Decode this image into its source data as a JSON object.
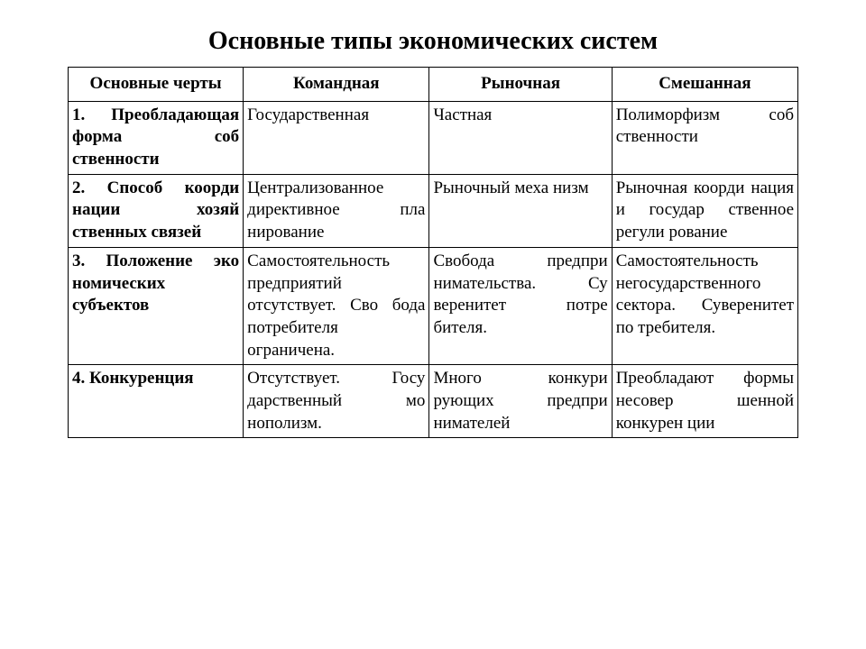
{
  "title": "Основные типы экономических систем",
  "table": {
    "type": "table",
    "background_color": "#ffffff",
    "border_color": "#000000",
    "text_color": "#000000",
    "font_family": "Times New Roman",
    "title_fontsize": 28,
    "header_fontsize": 19,
    "cell_fontsize": 19,
    "columns": [
      {
        "label": "Основные черты",
        "width_pct": 24,
        "align": "center"
      },
      {
        "label": "Командная",
        "width_pct": 25.5,
        "align": "center"
      },
      {
        "label": "Рыночная",
        "width_pct": 25,
        "align": "center"
      },
      {
        "label": "Смешанная",
        "width_pct": 25.5,
        "align": "center"
      }
    ],
    "rows": [
      {
        "feature": "1. Преобладающая форма соб ственности",
        "command": "Государственная",
        "market": "Частная",
        "mixed": "Полиморфизм соб ственности"
      },
      {
        "feature": "2. Способ коорди нации хозяй ственных связей",
        "command": "Централизованное директивное пла нирование",
        "market": "Рыночный меха низм",
        "mixed": "Рыночная коорди нация и государ ственное регули рование"
      },
      {
        "feature": "3. Положение эко номических субъектов",
        "command": "Самостоятельность предприятий отсутствует. Сво бода потребителя ограничена.",
        "market": "Свобода предпри нимательства. Су веренитет потре бителя.",
        "mixed": "Самостоятельность негосударственного сектора. Суверенитет по требителя."
      },
      {
        "feature": "4. Конкуренция",
        "command": "Отсутствует. Госу дарственный мо нополизм.",
        "market": "Много конкури рующих предпри нимателей",
        "mixed": "Преобладают формы несовер шенной конкурен ции"
      }
    ]
  }
}
